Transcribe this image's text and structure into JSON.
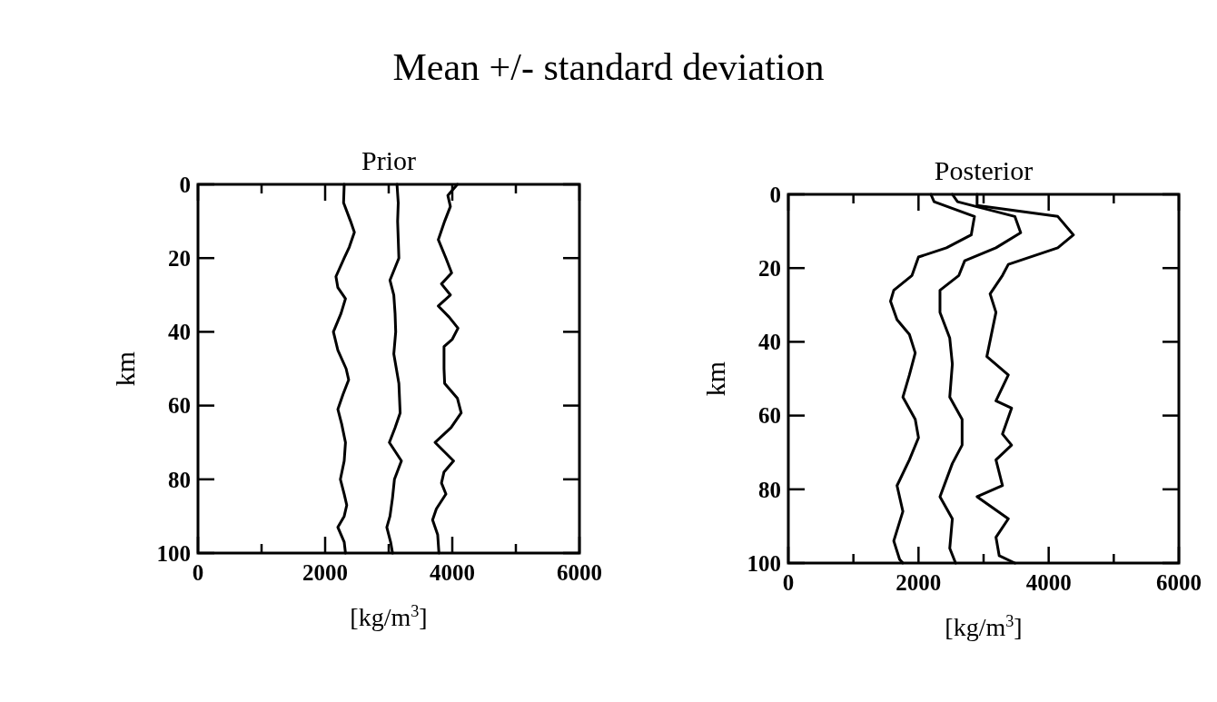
{
  "chart_data": [
    {
      "type": "line",
      "title": "Prior",
      "annotations": [
        "Mean +/- standard deviation"
      ],
      "xlabel": "[kg/m$^{3}$]",
      "ylabel": "km",
      "xlim": [
        0,
        6000
      ],
      "ylim": [
        100,
        0
      ],
      "xticks": [
        0,
        {
          "value": 1000,
          "label": null
        },
        2000,
        {
          "value": 3000,
          "label": null
        },
        4000,
        {
          "value": 5000,
          "label": null
        },
        6000
      ],
      "yticks": [
        0,
        20,
        40,
        60,
        80,
        100
      ],
      "grid": false,
      "line_style": "solid",
      "marker": "none",
      "series": [
        {
          "color": "#000000",
          "x": [
            2300,
            2290,
            2400,
            2460,
            2380,
            2300,
            2170,
            2200,
            2320,
            2250,
            2130,
            2200,
            2330,
            2370,
            2280,
            2200,
            2260,
            2320,
            2300,
            2240,
            2300,
            2340,
            2300,
            2200,
            2300,
            2320
          ],
          "values": [
            0,
            5,
            10,
            13,
            17,
            20,
            25,
            28,
            31,
            35,
            40,
            45,
            50,
            53,
            57,
            61,
            65,
            70,
            75,
            80,
            84,
            87,
            90,
            93,
            97,
            100
          ]
        },
        {
          "color": "#000000",
          "x": [
            3130,
            3150,
            3140,
            3150,
            3160,
            3020,
            3080,
            3100,
            3110,
            3080,
            3120,
            3160,
            3170,
            3180,
            3100,
            3010,
            3200,
            3090,
            3060,
            3020,
            2970,
            3030,
            3060
          ],
          "values": [
            0,
            5,
            10,
            15,
            20,
            26,
            30,
            35,
            40,
            46,
            50,
            54,
            58,
            62,
            66,
            70,
            75,
            80,
            85,
            90,
            93,
            97,
            100
          ]
        },
        {
          "color": "#000000",
          "x": [
            4080,
            3930,
            3970,
            3880,
            3780,
            3900,
            3990,
            3830,
            3970,
            3780,
            3950,
            4090,
            4000,
            3870,
            3870,
            3880,
            4080,
            4140,
            3980,
            3730,
            4020,
            3870,
            3830,
            3900,
            3750,
            3690,
            3770,
            3790
          ],
          "values": [
            0,
            3,
            6,
            10,
            15,
            20,
            24,
            27,
            30,
            33,
            36,
            39,
            42,
            44,
            50,
            54,
            58,
            62,
            66,
            70,
            75,
            78,
            81,
            84,
            88,
            91,
            95,
            100
          ]
        }
      ]
    },
    {
      "type": "line",
      "title": "Posterior",
      "xlabel": "[kg/m$^{3}$]",
      "ylabel": "km",
      "xlim": [
        0,
        6000
      ],
      "ylim": [
        100,
        0
      ],
      "xticks": [
        0,
        {
          "value": 1000,
          "label": null
        },
        2000,
        {
          "value": 3000,
          "label": null
        },
        4000,
        {
          "value": 5000,
          "label": null
        },
        6000
      ],
      "yticks": [
        0,
        20,
        40,
        60,
        80,
        100
      ],
      "grid": false,
      "line_style": "solid",
      "marker": "none",
      "series": [
        {
          "color": "#000000",
          "x": [
            2190,
            2240,
            2860,
            2810,
            2430,
            2000,
            1900,
            1620,
            1570,
            1670,
            1860,
            1950,
            1860,
            1760,
            1950,
            2000,
            1860,
            1670,
            1760,
            1620,
            1710,
            1760
          ],
          "values": [
            0,
            2,
            6,
            11,
            14.5,
            17,
            22,
            26,
            29,
            34,
            38,
            43,
            49,
            55,
            61,
            66,
            72,
            79,
            86,
            94,
            99,
            100
          ]
        },
        {
          "color": "#000000",
          "x": [
            2520,
            2600,
            3480,
            3570,
            3190,
            2710,
            2620,
            2330,
            2330,
            2480,
            2520,
            2480,
            2670,
            2670,
            2520,
            2330,
            2520,
            2480,
            2570
          ],
          "values": [
            0,
            2,
            6,
            10.4,
            14.5,
            18,
            22,
            26,
            32,
            39,
            46,
            55,
            61,
            68,
            73,
            82,
            88,
            96,
            100
          ]
        },
        {
          "color": "#000000",
          "x": [
            2900,
            2900,
            4140,
            4380,
            4140,
            3380,
            3290,
            3100,
            3190,
            3050,
            3380,
            3190,
            3430,
            3290,
            3430,
            3190,
            3290,
            2900,
            3380,
            3190,
            3240,
            3480
          ],
          "values": [
            0,
            3,
            6,
            11,
            14.5,
            19,
            22,
            27,
            32,
            44,
            49,
            56,
            58,
            65,
            68,
            72,
            79,
            82,
            88,
            93,
            98,
            100
          ]
        }
      ]
    }
  ]
}
